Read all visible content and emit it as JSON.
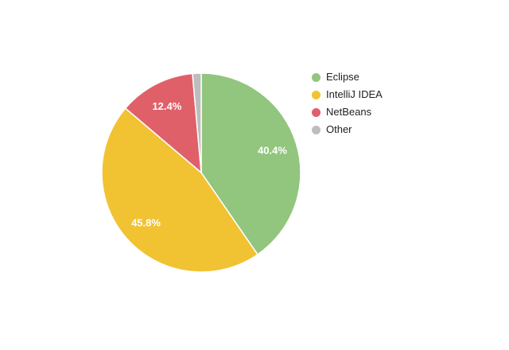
{
  "chart_data": {
    "type": "pie",
    "title": "",
    "legend_position": "right",
    "direction": "clockwise",
    "start_angle_deg": 0,
    "slice_border_color": "#ffffff",
    "slice_label_color": "#ffffff",
    "background_color": "#ffffff",
    "series": [
      {
        "label": "Eclipse",
        "value": 40.4,
        "display_label": "40.4%",
        "color": "#92c57e"
      },
      {
        "label": "IntelliJ IDEA",
        "value": 45.8,
        "display_label": "45.8%",
        "color": "#f1c232"
      },
      {
        "label": "NetBeans",
        "value": 12.4,
        "display_label": "12.4%",
        "color": "#e0606a"
      },
      {
        "label": "Other",
        "value": 1.4,
        "display_label": "",
        "color": "#bdbdbd"
      }
    ]
  }
}
